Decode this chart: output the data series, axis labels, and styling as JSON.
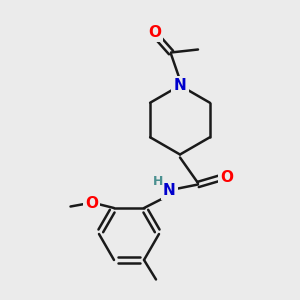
{
  "background_color": "#ebebeb",
  "bond_color": "#1a1a1a",
  "bond_width": 1.8,
  "atom_colors": {
    "O": "#ff0000",
    "N": "#0000cc",
    "N_amide": "#0000cc",
    "H": "#4a9090",
    "C": "#1a1a1a"
  },
  "font_size_atom": 11,
  "font_size_h": 9
}
